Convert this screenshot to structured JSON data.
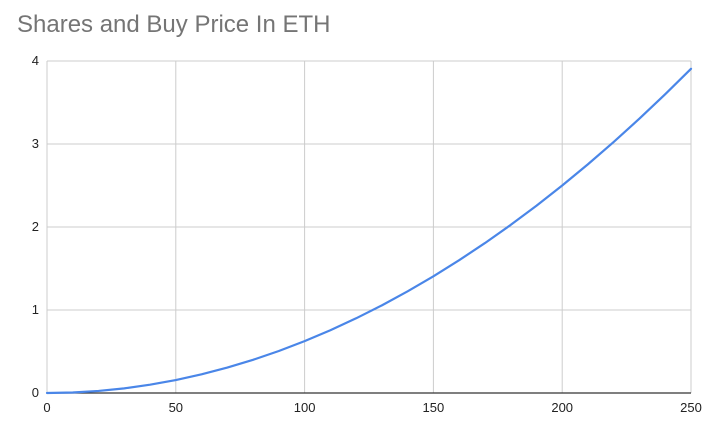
{
  "chart_data": {
    "type": "line",
    "title": "Shares and Buy Price In ETH",
    "xlabel": "",
    "ylabel": "",
    "xlim": [
      0,
      250
    ],
    "ylim": [
      0,
      4
    ],
    "xticks": [
      0,
      50,
      100,
      150,
      200,
      250
    ],
    "yticks": [
      0,
      1,
      2,
      3,
      4
    ],
    "grid": true,
    "legend": "none",
    "series": [
      {
        "color": "#4a86e8",
        "x": [
          0,
          10,
          20,
          30,
          40,
          50,
          60,
          70,
          80,
          90,
          100,
          110,
          120,
          130,
          140,
          150,
          160,
          170,
          180,
          190,
          200,
          210,
          220,
          230,
          240,
          250
        ],
        "y": [
          0,
          0.006,
          0.025,
          0.056,
          0.1,
          0.156,
          0.225,
          0.306,
          0.4,
          0.506,
          0.625,
          0.756,
          0.9,
          1.056,
          1.225,
          1.406,
          1.6,
          1.806,
          2.025,
          2.256,
          2.5,
          2.756,
          3.025,
          3.306,
          3.6,
          3.906
        ]
      }
    ]
  }
}
